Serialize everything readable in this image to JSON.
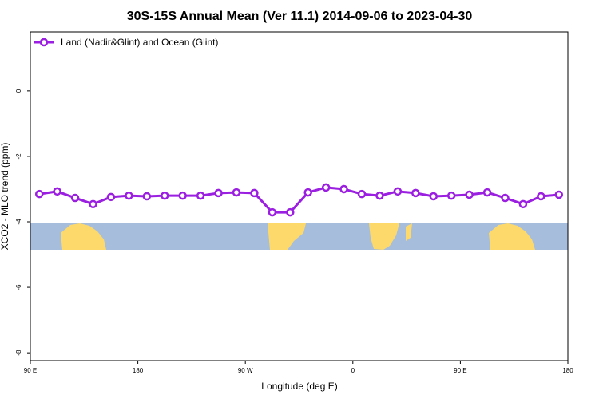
{
  "chart_data": {
    "type": "line",
    "title": "30S-15S Annual Mean (Ver 11.1)   2014-09-06 to 2023-04-30",
    "x_label": "Longitude (deg E)",
    "y_label": "XCO2 - MLO trend (ppm)",
    "x": [
      97.5,
      112.5,
      127.5,
      142.5,
      157.5,
      172.5,
      187.5,
      202.5,
      217.5,
      232.5,
      247.5,
      262.5,
      277.5,
      292.5,
      307.5,
      322.5,
      337.5,
      352.5,
      367.5,
      382.5,
      397.5,
      412.5,
      427.5,
      442.5,
      457.5,
      472.5,
      487.5,
      502.5,
      517.5,
      532.5
    ],
    "series": [
      {
        "name": "Land (Nadir&Glint) and Ocean (Glint)",
        "color": "#9b1fe0",
        "values": [
          -3.15,
          -3.07,
          -3.27,
          -3.46,
          -3.24,
          -3.2,
          -3.22,
          -3.2,
          -3.2,
          -3.2,
          -3.12,
          -3.1,
          -3.12,
          -3.71,
          -3.71,
          -3.1,
          -2.95,
          -3.0,
          -3.15,
          -3.2,
          -3.07,
          -3.12,
          -3.22,
          -3.2,
          -3.17,
          -3.1,
          -3.27,
          -3.46,
          -3.22,
          -3.17
        ]
      }
    ],
    "xlim": [
      90,
      540
    ],
    "xticks": [
      {
        "value": 90,
        "label": "90 E"
      },
      180,
      {
        "value": 270,
        "label": "90 W"
      },
      {
        "value": 360,
        "label": "0"
      },
      {
        "value": 450,
        "label": "90 E"
      },
      {
        "value": 540,
        "label": "180"
      }
    ],
    "ylim": [
      -8.24,
      1.8
    ],
    "yticks": [
      0,
      -2,
      -4,
      -6,
      -8
    ],
    "legend": "top-left"
  }
}
